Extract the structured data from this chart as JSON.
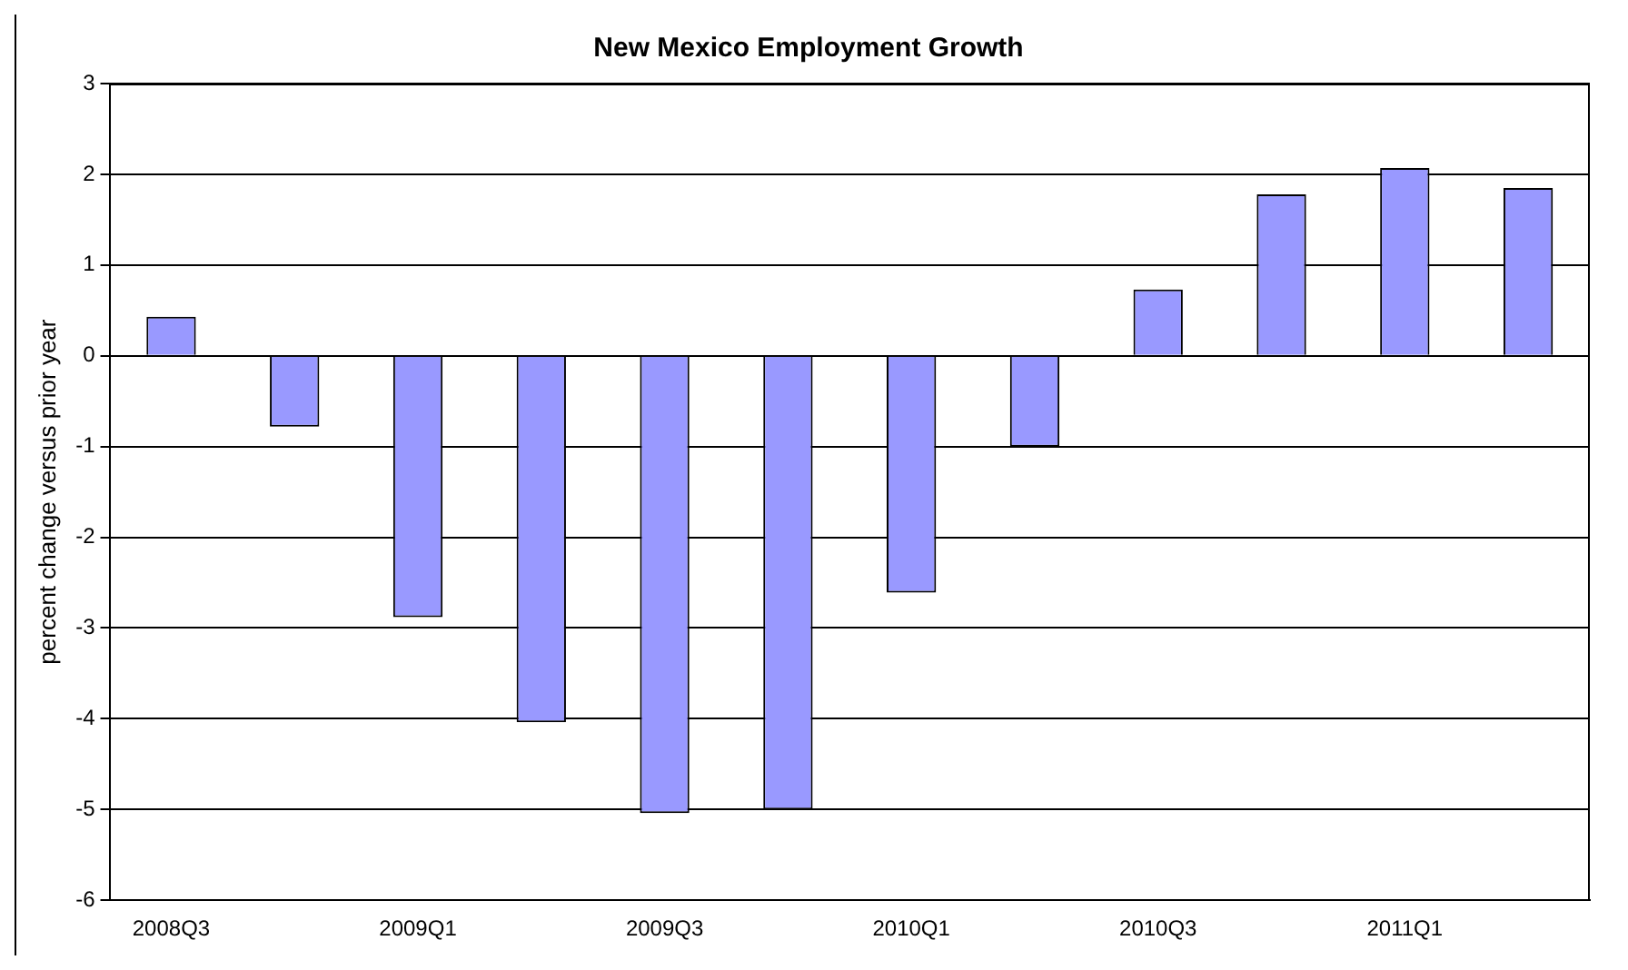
{
  "chart_data": {
    "type": "bar",
    "title": "New Mexico Employment Growth",
    "ylabel": "percent change versus prior year",
    "categories": [
      "2008Q3",
      null,
      "2009Q1",
      null,
      "2009Q3",
      null,
      "2010Q1",
      null,
      "2010Q3",
      null,
      "2011Q1",
      null
    ],
    "values": [
      0.43,
      -0.78,
      -2.88,
      -4.04,
      -5.04,
      -5.0,
      -2.61,
      -1.0,
      0.73,
      1.78,
      2.07,
      1.85
    ],
    "color": "#9999ff",
    "ylim": [
      -6,
      3
    ],
    "yticks": [
      -6,
      -5,
      -4,
      -3,
      -2,
      -1,
      0,
      1,
      2,
      3
    ],
    "grid": "y",
    "legend": false
  }
}
